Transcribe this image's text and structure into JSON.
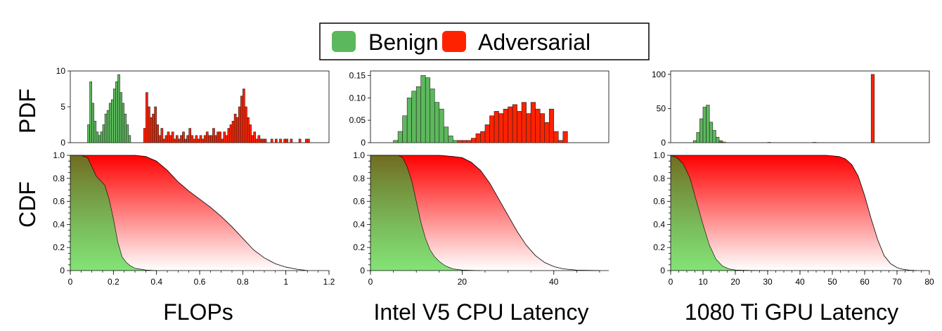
{
  "legend": {
    "position": "top-center",
    "items": [
      {
        "label": "Benign",
        "color": "#5cb85c"
      },
      {
        "label": "Adversarial",
        "color": "#ff2200"
      }
    ]
  },
  "row_labels": {
    "pdf": "PDF",
    "cdf": "CDF"
  },
  "colors": {
    "benign": "#5cb85c",
    "adversarial": "#ff2200",
    "benign_light": "#a8f5a0"
  },
  "chart_data": [
    {
      "type": "histogram",
      "title": "FLOPs",
      "xlim": [
        0,
        1.2
      ],
      "xticks": [
        "0",
        "0.2",
        "0.4",
        "0.6",
        "0.8",
        "1",
        "1.2"
      ],
      "pdf": {
        "ylabel": "PDF",
        "ylim": [
          0,
          10
        ],
        "yticks": [
          "0",
          "5",
          "10"
        ],
        "bin_width": 0.01,
        "series": [
          {
            "name": "Benign",
            "x": [
              0.08,
              0.09,
              0.1,
              0.11,
              0.12,
              0.13,
              0.14,
              0.15,
              0.16,
              0.17,
              0.18,
              0.19,
              0.2,
              0.21,
              0.22,
              0.23,
              0.24,
              0.25,
              0.26,
              0.27
            ],
            "values": [
              2.5,
              8.5,
              5.5,
              3,
              1.5,
              1,
              1.5,
              2.5,
              4,
              4.5,
              5.5,
              6,
              7.5,
              8.5,
              9.5,
              7,
              5.5,
              4,
              2.5,
              1
            ]
          },
          {
            "name": "Adversarial",
            "x": [
              0.34,
              0.35,
              0.36,
              0.37,
              0.38,
              0.39,
              0.4,
              0.41,
              0.42,
              0.43,
              0.44,
              0.45,
              0.46,
              0.47,
              0.48,
              0.49,
              0.5,
              0.51,
              0.52,
              0.53,
              0.54,
              0.55,
              0.56,
              0.57,
              0.58,
              0.59,
              0.6,
              0.61,
              0.62,
              0.63,
              0.64,
              0.65,
              0.66,
              0.67,
              0.68,
              0.69,
              0.7,
              0.71,
              0.72,
              0.73,
              0.74,
              0.75,
              0.76,
              0.77,
              0.78,
              0.79,
              0.8,
              0.81,
              0.82,
              0.83,
              0.84,
              0.85,
              0.86,
              0.87,
              0.88,
              0.89,
              0.9,
              0.91,
              0.92,
              0.93,
              0.94,
              0.95,
              0.96,
              0.97,
              0.98,
              0.99,
              1,
              1.01,
              1.02,
              1.03,
              1.04,
              1.05,
              1.06,
              1.07,
              1.08,
              1.09,
              1.1
            ],
            "values": [
              2,
              7,
              5,
              3.5,
              4,
              5,
              2.5,
              1,
              2,
              0.5,
              1,
              1.5,
              1,
              1.5,
              0.5,
              1,
              0.5,
              1,
              1.5,
              0.5,
              1,
              2,
              1,
              0.5,
              1,
              0.5,
              1,
              0.5,
              1,
              1.5,
              1,
              1,
              2,
              1,
              1.5,
              1.5,
              0.5,
              1.5,
              1,
              2,
              2.5,
              3,
              4,
              3.5,
              5,
              6.5,
              7.5,
              5,
              3.5,
              2.5,
              1,
              1.5,
              0.5,
              1,
              0.5,
              0.5,
              0.5,
              0,
              0,
              0.5,
              0,
              0.5,
              0,
              0.5,
              0,
              0.5,
              0.5,
              0,
              0.5,
              0,
              0,
              0,
              0.5,
              0,
              0,
              0.5,
              0.5
            ]
          }
        ]
      },
      "cdf": {
        "ylabel": "CDF",
        "ylim": [
          0,
          1
        ],
        "yticks": [
          "0",
          "0.2",
          "0.4",
          "0.6",
          "0.8",
          "1.0"
        ],
        "series": [
          {
            "name": "Benign",
            "x": [
              0,
              0.05,
              0.08,
              0.1,
              0.12,
              0.14,
              0.16,
              0.18,
              0.2,
              0.22,
              0.24,
              0.26,
              0.28,
              0.3,
              0.35,
              0.4
            ],
            "values": [
              1,
              1,
              0.98,
              0.9,
              0.82,
              0.78,
              0.74,
              0.62,
              0.45,
              0.25,
              0.12,
              0.07,
              0.04,
              0.02,
              0.005,
              0
            ]
          },
          {
            "name": "Adversarial",
            "x": [
              0,
              0.1,
              0.2,
              0.3,
              0.35,
              0.4,
              0.45,
              0.5,
              0.55,
              0.6,
              0.65,
              0.7,
              0.75,
              0.8,
              0.85,
              0.9,
              0.95,
              1,
              1.05,
              1.1
            ],
            "values": [
              1,
              1,
              1,
              1,
              0.99,
              0.95,
              0.87,
              0.77,
              0.69,
              0.62,
              0.55,
              0.47,
              0.38,
              0.28,
              0.18,
              0.11,
              0.06,
              0.03,
              0.012,
              0
            ]
          }
        ]
      }
    },
    {
      "type": "histogram",
      "title": "Intel V5 CPU Latency",
      "xlim": [
        0,
        52
      ],
      "xticks": [
        "0",
        "20",
        "40"
      ],
      "xtick_values": [
        0,
        20,
        40
      ],
      "pdf": {
        "ylabel": "PDF",
        "ylim": [
          0,
          0.16
        ],
        "yticks": [
          "0",
          "0.05",
          "0.10",
          "0.15"
        ],
        "ytick_values": [
          0,
          0.05,
          0.1,
          0.15
        ],
        "bin_width": 1,
        "series": [
          {
            "name": "Benign",
            "x": [
              5,
              6,
              7,
              8,
              9,
              10,
              11,
              12,
              13,
              14,
              15,
              16,
              17,
              18
            ],
            "values": [
              0.005,
              0.025,
              0.06,
              0.1,
              0.115,
              0.125,
              0.15,
              0.145,
              0.12,
              0.09,
              0.075,
              0.035,
              0.015,
              0.005
            ]
          },
          {
            "name": "Adversarial",
            "x": [
              19,
              20,
              21,
              22,
              23,
              24,
              25,
              26,
              27,
              28,
              29,
              30,
              31,
              32,
              33,
              34,
              35,
              36,
              37,
              38,
              39,
              40,
              41,
              42
            ],
            "values": [
              0.005,
              0.005,
              0.005,
              0.01,
              0.02,
              0.025,
              0.04,
              0.06,
              0.07,
              0.065,
              0.075,
              0.08,
              0.085,
              0.07,
              0.09,
              0.065,
              0.09,
              0.075,
              0.065,
              0.045,
              0.075,
              0.025,
              0.005,
              0.025
            ]
          }
        ]
      },
      "cdf": {
        "ylabel": "CDF",
        "ylim": [
          0,
          1
        ],
        "yticks": [
          "0",
          "0.2",
          "0.4",
          "0.6",
          "0.8",
          "1.0"
        ],
        "series": [
          {
            "name": "Benign",
            "x": [
              0,
              2.5,
              2.5,
              6,
              7,
              8,
              9,
              10,
              11,
              12,
              13,
              14,
              15,
              16,
              17,
              18,
              20,
              24
            ],
            "values": [
              1,
              1,
              1,
              1,
              0.98,
              0.9,
              0.78,
              0.6,
              0.42,
              0.28,
              0.18,
              0.12,
              0.08,
              0.05,
              0.03,
              0.015,
              0.005,
              0
            ]
          },
          {
            "name": "Adversarial",
            "x": [
              0,
              15,
              18,
              20,
              22,
              24,
              26,
              28,
              30,
              32,
              34,
              36,
              38,
              40,
              42,
              45,
              50
            ],
            "values": [
              1,
              1,
              0.99,
              0.98,
              0.94,
              0.87,
              0.76,
              0.62,
              0.48,
              0.34,
              0.22,
              0.13,
              0.07,
              0.035,
              0.015,
              0.004,
              0
            ]
          }
        ]
      }
    },
    {
      "type": "histogram",
      "title": "1080 Ti GPU Latency",
      "xlim": [
        0,
        80
      ],
      "xticks": [
        "0",
        "10",
        "20",
        "30",
        "40",
        "50",
        "60",
        "70",
        "80"
      ],
      "pdf": {
        "ylabel": "PDF",
        "ylim": [
          0,
          105
        ],
        "yticks": [
          "0",
          "50",
          "100"
        ],
        "bin_width": 1,
        "series": [
          {
            "name": "Benign",
            "x": [
              7,
              8,
              9,
              10,
              11,
              12,
              13,
              14,
              15,
              16
            ],
            "values": [
              3,
              15,
              35,
              52,
              55,
              30,
              18,
              8,
              3,
              1
            ]
          },
          {
            "name": "Adversarial",
            "x": [
              15,
              30,
              44,
              62
            ],
            "values": [
              1,
              0.5,
              0.5,
              100
            ]
          }
        ]
      },
      "cdf": {
        "ylabel": "CDF",
        "ylim": [
          0,
          1
        ],
        "yticks": [
          "0",
          "0.2",
          "0.4",
          "0.6",
          "0.8",
          "1.0"
        ],
        "series": [
          {
            "name": "Benign",
            "x": [
              0,
              2,
              4,
              6,
              8,
              10,
              12,
              14,
              16,
              18,
              20,
              25,
              30
            ],
            "values": [
              1,
              0.98,
              0.92,
              0.8,
              0.6,
              0.4,
              0.22,
              0.1,
              0.04,
              0.015,
              0.005,
              0.001,
              0
            ]
          },
          {
            "name": "Adversarial",
            "x": [
              0,
              48,
              52,
              54,
              56,
              58,
              60,
              62,
              64,
              66,
              68,
              70,
              72,
              74,
              76
            ],
            "values": [
              1,
              1,
              0.99,
              0.97,
              0.92,
              0.82,
              0.65,
              0.45,
              0.27,
              0.13,
              0.06,
              0.025,
              0.01,
              0.003,
              0
            ]
          }
        ]
      }
    }
  ]
}
